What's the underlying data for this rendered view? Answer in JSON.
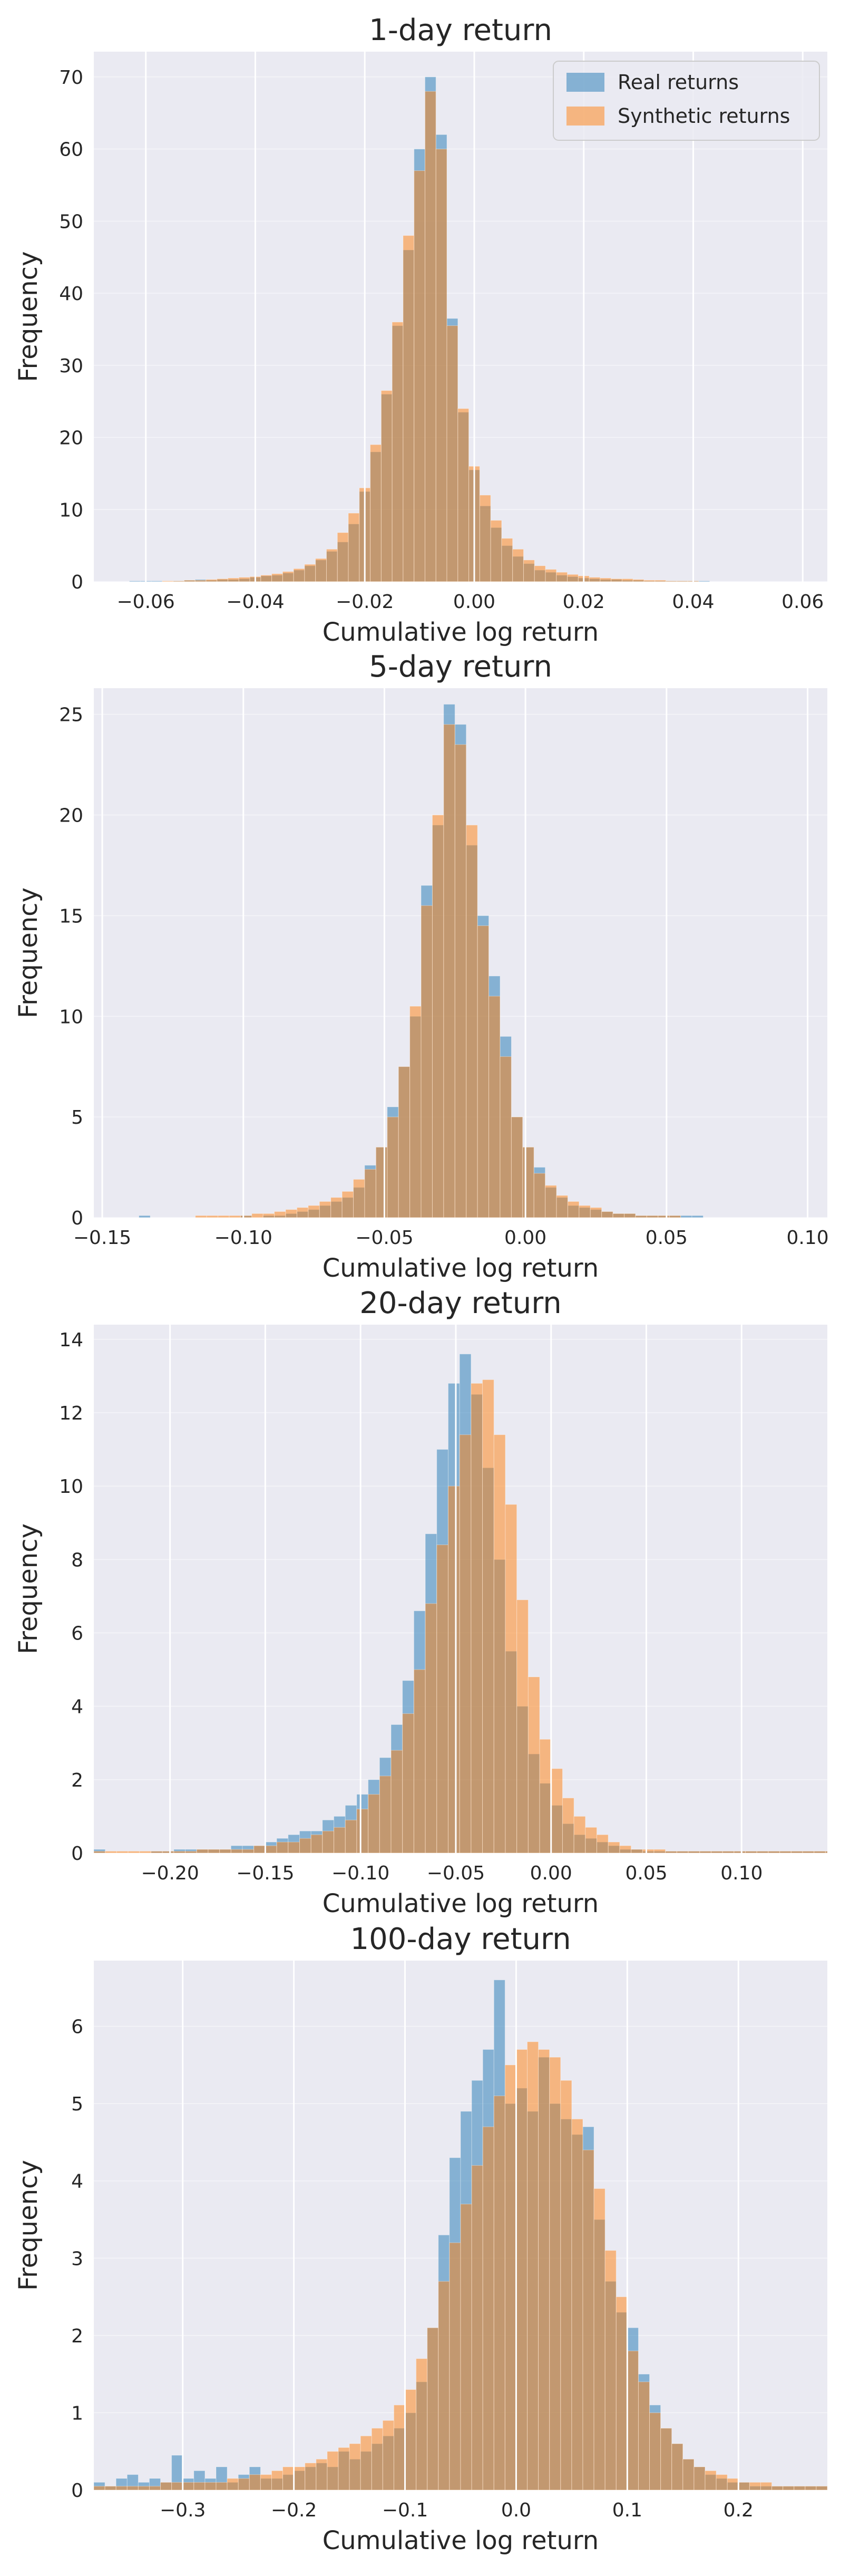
{
  "colors": {
    "real": "#1f77b4",
    "synthetic": "#ff7f0e",
    "panel": "#eaeaf2",
    "text": "#262626"
  },
  "legend_location": "upper-right",
  "chart_data": [
    {
      "type": "bar",
      "title": "1-day return",
      "xlabel": "Cumulative log return",
      "ylabel": "Frequency",
      "xlim": [
        -0.0695,
        0.0645
      ],
      "ylim": [
        0,
        73.5
      ],
      "xticks": [
        -0.06,
        -0.04,
        -0.02,
        0.0,
        0.02,
        0.04,
        0.06
      ],
      "xtick_labels": [
        "−0.06",
        "−0.04",
        "−0.02",
        "0.00",
        "0.02",
        "0.04",
        "0.06"
      ],
      "yticks": [
        0,
        10,
        20,
        30,
        40,
        50,
        60,
        70
      ],
      "ytick_labels": [
        "0",
        "10",
        "20",
        "30",
        "40",
        "50",
        "60",
        "70"
      ],
      "legend": [
        "Real returns",
        "Synthetic returns"
      ],
      "bins": {
        "start": -0.063,
        "width": 0.002
      },
      "series": [
        {
          "name": "Real returns",
          "values": [
            0.1,
            0.1,
            0.1,
            0,
            0.1,
            0.2,
            0.3,
            0.2,
            0.3,
            0.3,
            0.4,
            0.6,
            0.8,
            0.9,
            1.2,
            1.6,
            2.2,
            3.0,
            4.2,
            5.5,
            8.0,
            12.5,
            18.0,
            26.0,
            35.5,
            46.0,
            60.0,
            70.0,
            62.0,
            36.5,
            23.5,
            15.5,
            10.5,
            7.5,
            5.0,
            3.5,
            2.5,
            1.6,
            1.3,
            0.9,
            0.7,
            0.5,
            0.4,
            0.3,
            0.3,
            0.2,
            0.2,
            0.1,
            0.1,
            0.1,
            0.1,
            0.1,
            0.1,
            0,
            0,
            0,
            0,
            0,
            0,
            0,
            0,
            0
          ]
        },
        {
          "name": "Synthetic returns",
          "values": [
            0,
            0,
            0,
            0.1,
            0.1,
            0.2,
            0.2,
            0.3,
            0.4,
            0.5,
            0.6,
            0.7,
            0.9,
            1.1,
            1.4,
            1.8,
            2.4,
            3.2,
            4.5,
            6.8,
            9.5,
            13.0,
            19.0,
            26.5,
            36.0,
            48.0,
            57.0,
            68.0,
            60.0,
            35.5,
            24.0,
            16.0,
            12.0,
            8.5,
            6.0,
            4.5,
            3.0,
            2.2,
            1.7,
            1.3,
            1.0,
            0.8,
            0.6,
            0.5,
            0.4,
            0.4,
            0.3,
            0.2,
            0.2,
            0.1,
            0.1,
            0.1,
            0,
            0,
            0,
            0,
            0,
            0,
            0,
            0,
            0,
            0
          ]
        }
      ]
    },
    {
      "type": "bar",
      "title": "5-day return",
      "xlabel": "Cumulative log return",
      "ylabel": "Frequency",
      "xlim": [
        -0.153,
        0.107
      ],
      "ylim": [
        0,
        26.3
      ],
      "xticks": [
        -0.15,
        -0.1,
        -0.05,
        0.0,
        0.05,
        0.1
      ],
      "xtick_labels": [
        "−0.15",
        "−0.10",
        "−0.05",
        "0.00",
        "0.05",
        "0.10"
      ],
      "yticks": [
        0,
        5,
        10,
        15,
        20,
        25
      ],
      "ytick_labels": [
        "0",
        "5",
        "10",
        "15",
        "20",
        "25"
      ],
      "bins": {
        "start": -0.153,
        "width": 0.004
      },
      "series": [
        {
          "name": "Real returns",
          "values": [
            0,
            0,
            0,
            0,
            0.1,
            0,
            0,
            0,
            0,
            0,
            0,
            0,
            0,
            0.1,
            0,
            0.1,
            0.1,
            0.2,
            0.3,
            0.4,
            0.6,
            0.8,
            1.0,
            1.5,
            2.6,
            3.5,
            5.5,
            7.5,
            10.0,
            16.5,
            19.5,
            25.5,
            24.5,
            18.5,
            15.0,
            12.0,
            9.0,
            5.0,
            3.5,
            2.5,
            1.5,
            1.0,
            0.6,
            0.5,
            0.4,
            0.3,
            0.2,
            0.2,
            0.1,
            0.1,
            0.1,
            0.1,
            0.1,
            0.1,
            0,
            0,
            0,
            0,
            0,
            0,
            0,
            0,
            0,
            0,
            0
          ]
        },
        {
          "name": "Synthetic returns",
          "values": [
            0,
            0,
            0,
            0,
            0,
            0,
            0,
            0,
            0,
            0.1,
            0.1,
            0.1,
            0.1,
            0.1,
            0.2,
            0.2,
            0.3,
            0.4,
            0.5,
            0.6,
            0.8,
            1.0,
            1.3,
            1.9,
            2.4,
            3.5,
            5.0,
            7.5,
            10.5,
            15.5,
            20.0,
            24.5,
            23.5,
            19.5,
            14.5,
            11.0,
            8.0,
            5.0,
            3.5,
            2.2,
            1.6,
            1.1,
            0.8,
            0.6,
            0.5,
            0.3,
            0.2,
            0.2,
            0.1,
            0.1,
            0.1,
            0.1,
            0,
            0,
            0,
            0,
            0,
            0,
            0,
            0,
            0,
            0,
            0,
            0,
            0
          ]
        }
      ]
    },
    {
      "type": "bar",
      "title": "20-day return",
      "xlabel": "Cumulative log return",
      "ylabel": "Frequency",
      "xlim": [
        -0.24,
        0.145
      ],
      "ylim": [
        0,
        14.4
      ],
      "xticks": [
        -0.2,
        -0.15,
        -0.1,
        -0.05,
        0.0,
        0.05,
        0.1
      ],
      "xtick_labels": [
        "−0.20",
        "−0.15",
        "−0.10",
        "−0.05",
        "0.00",
        "0.05",
        "0.10"
      ],
      "yticks": [
        0,
        2,
        4,
        6,
        8,
        10,
        12,
        14
      ],
      "ytick_labels": [
        "0",
        "2",
        "4",
        "6",
        "8",
        "10",
        "12",
        "14"
      ],
      "bins": {
        "start": -0.24,
        "width": 0.006
      },
      "series": [
        {
          "name": "Real returns",
          "values": [
            0.1,
            0,
            0,
            0,
            0,
            0.05,
            0.05,
            0.1,
            0.1,
            0.1,
            0.1,
            0.1,
            0.2,
            0.2,
            0.2,
            0.3,
            0.4,
            0.5,
            0.6,
            0.6,
            0.9,
            1.0,
            1.3,
            1.6,
            2.0,
            2.6,
            3.5,
            4.7,
            6.6,
            8.7,
            11.0,
            12.8,
            13.6,
            12.5,
            10.5,
            8.0,
            5.5,
            4.0,
            2.7,
            1.9,
            1.3,
            0.8,
            0.5,
            0.4,
            0.3,
            0.2,
            0.1,
            0.1,
            0.05,
            0.05,
            0.05,
            0.05,
            0.05,
            0.05,
            0.05,
            0.05,
            0.05,
            0.05,
            0.05,
            0.05,
            0.05,
            0.05,
            0.05,
            0.05,
            0.05,
            0.05
          ]
        },
        {
          "name": "Synthetic returns",
          "values": [
            0.05,
            0.05,
            0.05,
            0.05,
            0.05,
            0.05,
            0.05,
            0.05,
            0.05,
            0.1,
            0.1,
            0.1,
            0.1,
            0.1,
            0.2,
            0.2,
            0.3,
            0.3,
            0.4,
            0.5,
            0.6,
            0.7,
            0.9,
            1.2,
            1.6,
            2.1,
            2.8,
            3.8,
            5.0,
            6.8,
            8.4,
            10.0,
            11.4,
            12.8,
            12.9,
            11.4,
            9.5,
            6.9,
            4.8,
            3.1,
            2.3,
            1.5,
            1.0,
            0.7,
            0.5,
            0.3,
            0.2,
            0.1,
            0.1,
            0.1,
            0.05,
            0.05,
            0.05,
            0.05,
            0.05,
            0.05,
            0.05,
            0.05,
            0.05,
            0.05,
            0.05,
            0.05,
            0.05,
            0.05,
            0.05,
            0.05
          ]
        }
      ]
    },
    {
      "type": "bar",
      "title": "100-day return",
      "xlabel": "Cumulative log return",
      "ylabel": "Frequency",
      "xlim": [
        -0.38,
        0.28
      ],
      "ylim": [
        0,
        6.85
      ],
      "xticks": [
        -0.3,
        -0.2,
        -0.1,
        0.0,
        0.1,
        0.2
      ],
      "xtick_labels": [
        "−0.3",
        "−0.2",
        "−0.1",
        "0.0",
        "0.1",
        "0.2"
      ],
      "yticks": [
        0,
        1,
        2,
        3,
        4,
        5,
        6
      ],
      "ytick_labels": [
        "0",
        "1",
        "2",
        "3",
        "4",
        "5",
        "6"
      ],
      "bins": {
        "start": -0.38,
        "width": 0.01
      },
      "series": [
        {
          "name": "Real returns",
          "values": [
            0.1,
            0.05,
            0.15,
            0.2,
            0.1,
            0.15,
            0.1,
            0.45,
            0.15,
            0.25,
            0.15,
            0.3,
            0.1,
            0.2,
            0.3,
            0.15,
            0.15,
            0.2,
            0.25,
            0.3,
            0.35,
            0.3,
            0.5,
            0.4,
            0.5,
            0.6,
            0.7,
            0.8,
            1.0,
            1.4,
            2.1,
            3.3,
            4.3,
            4.9,
            5.3,
            5.7,
            6.6,
            5.0,
            5.2,
            4.9,
            5.6,
            5.0,
            4.8,
            4.6,
            4.7,
            3.5,
            2.7,
            2.3,
            2.1,
            1.5,
            1.1,
            0.8,
            0.6,
            0.4,
            0.3,
            0.2,
            0.15,
            0.1,
            0.1,
            0.05,
            0.05,
            0.05,
            0.05,
            0.05,
            0.05,
            0.05
          ]
        },
        {
          "name": "Synthetic returns",
          "values": [
            0.05,
            0.05,
            0.05,
            0.05,
            0.05,
            0.05,
            0.1,
            0.1,
            0.1,
            0.1,
            0.1,
            0.1,
            0.15,
            0.15,
            0.2,
            0.2,
            0.25,
            0.3,
            0.3,
            0.35,
            0.4,
            0.5,
            0.55,
            0.6,
            0.7,
            0.8,
            0.9,
            1.1,
            1.3,
            1.7,
            2.1,
            2.7,
            3.2,
            3.7,
            4.2,
            4.7,
            5.1,
            5.5,
            5.7,
            5.8,
            5.7,
            5.6,
            5.3,
            4.8,
            4.4,
            3.9,
            3.1,
            2.5,
            1.8,
            1.4,
            1.0,
            0.8,
            0.6,
            0.4,
            0.3,
            0.25,
            0.2,
            0.15,
            0.1,
            0.1,
            0.1,
            0.05,
            0.05,
            0.05,
            0.05,
            0.05
          ]
        }
      ]
    }
  ]
}
